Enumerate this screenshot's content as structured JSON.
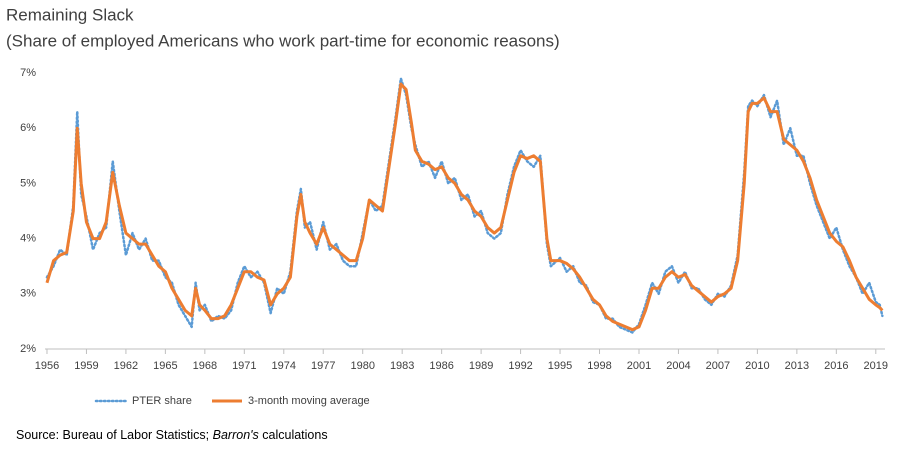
{
  "chart_data": {
    "type": "line",
    "title": "Remaining Slack",
    "subtitle": "(Share of employed Americans who work part-time for economic reasons)",
    "source": {
      "prefix": "Source: Bureau of Labor Statistics; ",
      "italic": "Barron's",
      "suffix": " calculations"
    },
    "x": [
      1956,
      1956.5,
      1957,
      1957.5,
      1958,
      1958.3,
      1958.6,
      1959,
      1959.5,
      1960,
      1960.5,
      1961,
      1961.5,
      1962,
      1962.5,
      1963,
      1963.5,
      1964,
      1964.5,
      1965,
      1965.5,
      1966,
      1966.5,
      1967,
      1967.3,
      1967.6,
      1968,
      1968.5,
      1969,
      1969.5,
      1970,
      1970.5,
      1971,
      1971.5,
      1972,
      1972.5,
      1973,
      1973.5,
      1974,
      1974.5,
      1975,
      1975.3,
      1975.6,
      1976,
      1976.5,
      1977,
      1977.5,
      1978,
      1978.5,
      1979,
      1979.5,
      1980,
      1980.5,
      1981,
      1981.5,
      1982,
      1982.5,
      1982.9,
      1983.3,
      1983.7,
      1984,
      1984.5,
      1985,
      1985.5,
      1986,
      1986.5,
      1987,
      1987.5,
      1988,
      1988.5,
      1989,
      1989.5,
      1990,
      1990.5,
      1991,
      1991.5,
      1992,
      1992.5,
      1993,
      1993.5,
      1994,
      1994.3,
      1995,
      1995.5,
      1996,
      1996.5,
      1997,
      1997.5,
      1998,
      1998.5,
      1999,
      1999.5,
      2000,
      2000.5,
      2001,
      2001.5,
      2002,
      2002.5,
      2003,
      2003.5,
      2004,
      2004.5,
      2005,
      2005.5,
      2006,
      2006.5,
      2007,
      2007.5,
      2008,
      2008.5,
      2009,
      2009.3,
      2009.6,
      2010,
      2010.5,
      2011,
      2011.5,
      2012,
      2012.5,
      2013,
      2013.5,
      2014,
      2014.5,
      2015,
      2015.5,
      2016,
      2016.5,
      2017,
      2017.5,
      2018,
      2018.5,
      2019,
      2019.3,
      2019.5
    ],
    "series": [
      {
        "name": "PTER share",
        "color": "#5b9bd5",
        "style": "dotted",
        "values": [
          3.3,
          3.5,
          3.8,
          3.7,
          4.6,
          6.3,
          4.8,
          4.4,
          3.8,
          4.1,
          4.2,
          5.4,
          4.5,
          3.7,
          4.1,
          3.8,
          4.0,
          3.6,
          3.6,
          3.3,
          3.2,
          2.8,
          2.6,
          2.4,
          3.2,
          2.7,
          2.8,
          2.5,
          2.6,
          2.55,
          2.7,
          3.2,
          3.5,
          3.3,
          3.4,
          3.2,
          2.65,
          3.1,
          3.0,
          3.4,
          4.5,
          4.9,
          4.2,
          4.3,
          3.8,
          4.3,
          3.8,
          3.9,
          3.6,
          3.5,
          3.5,
          4.1,
          4.7,
          4.5,
          4.6,
          5.4,
          6.2,
          6.9,
          6.6,
          6.0,
          5.7,
          5.3,
          5.4,
          5.1,
          5.4,
          5.0,
          5.1,
          4.7,
          4.8,
          4.4,
          4.5,
          4.1,
          4.0,
          4.1,
          4.8,
          5.3,
          5.6,
          5.4,
          5.3,
          5.5,
          3.9,
          3.5,
          3.65,
          3.4,
          3.5,
          3.2,
          3.15,
          2.85,
          2.8,
          2.55,
          2.55,
          2.4,
          2.35,
          2.3,
          2.45,
          2.8,
          3.2,
          3.0,
          3.4,
          3.5,
          3.2,
          3.4,
          3.1,
          3.1,
          2.9,
          2.8,
          3.0,
          2.95,
          3.15,
          3.7,
          5.2,
          6.4,
          6.5,
          6.4,
          6.6,
          6.2,
          6.5,
          5.7,
          6.0,
          5.5,
          5.5,
          5.0,
          4.6,
          4.3,
          4.0,
          4.2,
          3.8,
          3.5,
          3.3,
          3.0,
          3.2,
          2.85,
          2.8,
          2.6
        ]
      },
      {
        "name": "3-month moving average",
        "color": "#ed7d31",
        "style": "solid",
        "values": [
          3.2,
          3.6,
          3.7,
          3.75,
          4.5,
          6.0,
          5.0,
          4.3,
          4.0,
          4.0,
          4.3,
          5.2,
          4.6,
          4.1,
          4.0,
          3.9,
          3.9,
          3.7,
          3.5,
          3.4,
          3.1,
          2.9,
          2.7,
          2.6,
          3.1,
          2.8,
          2.7,
          2.55,
          2.55,
          2.6,
          2.8,
          3.1,
          3.4,
          3.4,
          3.3,
          3.25,
          2.8,
          3.0,
          3.1,
          3.3,
          4.4,
          4.8,
          4.3,
          4.1,
          3.9,
          4.2,
          3.9,
          3.8,
          3.7,
          3.6,
          3.6,
          4.0,
          4.7,
          4.6,
          4.5,
          5.3,
          6.1,
          6.8,
          6.7,
          6.1,
          5.6,
          5.4,
          5.35,
          5.25,
          5.3,
          5.1,
          5.0,
          4.8,
          4.7,
          4.5,
          4.4,
          4.2,
          4.1,
          4.2,
          4.7,
          5.2,
          5.5,
          5.45,
          5.5,
          5.4,
          4.0,
          3.6,
          3.6,
          3.55,
          3.45,
          3.3,
          3.1,
          2.9,
          2.8,
          2.6,
          2.5,
          2.45,
          2.4,
          2.35,
          2.4,
          2.7,
          3.1,
          3.1,
          3.3,
          3.4,
          3.3,
          3.35,
          3.15,
          3.05,
          2.95,
          2.85,
          2.95,
          3.0,
          3.1,
          3.6,
          5.0,
          6.3,
          6.45,
          6.45,
          6.55,
          6.3,
          6.3,
          5.8,
          5.7,
          5.6,
          5.4,
          5.1,
          4.7,
          4.4,
          4.1,
          3.95,
          3.85,
          3.6,
          3.3,
          3.1,
          2.9,
          2.8,
          2.75,
          2.7
        ]
      }
    ],
    "xlim": [
      1955.85,
      2019.7
    ],
    "xticks": [
      1956,
      1959,
      1962,
      1965,
      1968,
      1971,
      1974,
      1977,
      1980,
      1983,
      1986,
      1989,
      1992,
      1995,
      1998,
      2001,
      2004,
      2007,
      2010,
      2013,
      2016,
      2019
    ],
    "ylim": [
      2,
      7
    ],
    "yticks": [
      {
        "value": 2,
        "label": "2%"
      },
      {
        "value": 3,
        "label": "3%"
      },
      {
        "value": 4,
        "label": "4%"
      },
      {
        "value": 5,
        "label": "5%"
      },
      {
        "value": 6,
        "label": "6%"
      },
      {
        "value": 7,
        "label": "7%"
      }
    ],
    "grid": false,
    "legend": "bottom"
  }
}
